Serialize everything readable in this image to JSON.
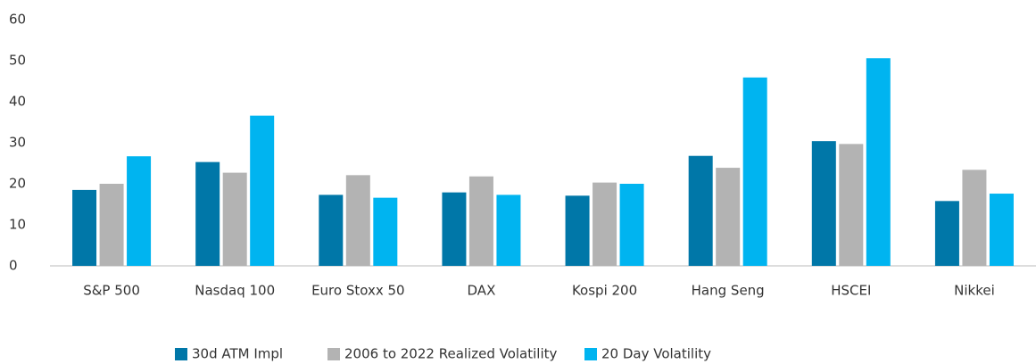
{
  "chart_data": {
    "type": "bar",
    "categories": [
      "S&P 500",
      "Nasdaq 100",
      "Euro Stoxx 50",
      "DAX",
      "Kospi 200",
      "Hang Seng",
      "HSCEI",
      "Nikkei"
    ],
    "series": [
      {
        "name": "30d ATM Impl",
        "color": "#0077a8",
        "values": [
          18.5,
          25.3,
          17.3,
          17.9,
          17.1,
          26.8,
          30.4,
          15.8
        ]
      },
      {
        "name": "2006 to 2022 Realized Volatility",
        "color": "#b3b3b3",
        "values": [
          20,
          22.7,
          22.1,
          21.8,
          20.3,
          23.9,
          29.7,
          23.4
        ]
      },
      {
        "name": "20 Day Volatility",
        "color": "#00b4f0",
        "values": [
          26.7,
          36.6,
          16.6,
          17.3,
          20,
          45.9,
          50.6,
          17.6
        ]
      }
    ],
    "ylim": [
      0,
      60
    ],
    "yticks": [
      0,
      10,
      20,
      30,
      40,
      50,
      60
    ],
    "grid": false,
    "legend": "bottom"
  }
}
